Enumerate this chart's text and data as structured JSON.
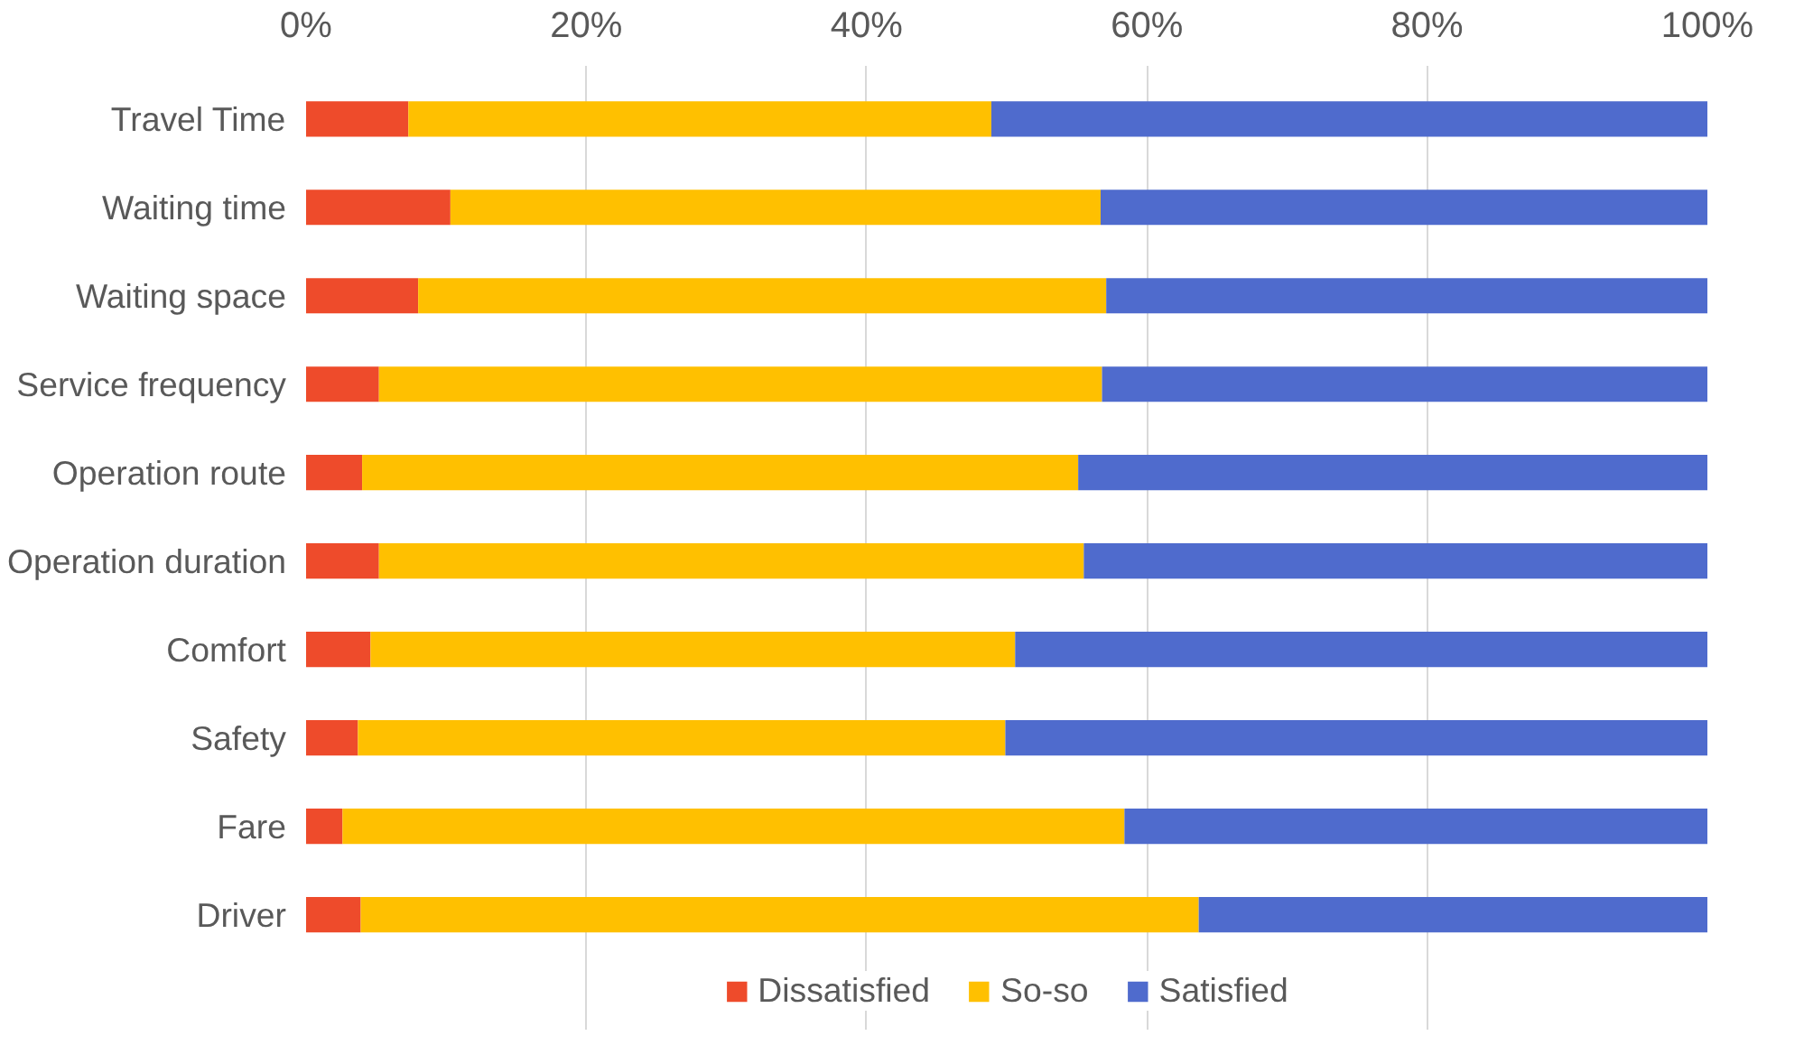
{
  "chart_data": {
    "type": "bar",
    "orientation": "horizontal",
    "stacked": true,
    "categories": [
      "Travel Time",
      "Waiting time",
      "Waiting space",
      "Service frequency",
      "Operation route",
      "Operation duration",
      "Comfort",
      "Safety",
      "Fare",
      "Driver"
    ],
    "series": [
      {
        "name": "Dissatisfied",
        "color": "#ee4b2b",
        "values": [
          7.3,
          10.3,
          8.0,
          5.2,
          4.0,
          5.2,
          4.6,
          3.7,
          2.6,
          3.9
        ]
      },
      {
        "name": "So-so",
        "color": "#ffc000",
        "values": [
          41.6,
          46.4,
          49.1,
          51.6,
          51.1,
          50.3,
          46.0,
          46.2,
          55.8,
          59.8
        ]
      },
      {
        "name": "Satisfied",
        "color": "#4f6bcd",
        "values": [
          51.1,
          43.3,
          42.9,
          43.2,
          44.9,
          44.5,
          49.4,
          50.1,
          41.6,
          36.3
        ]
      }
    ],
    "xlim": [
      0,
      100
    ],
    "xticks": [
      {
        "value": 0,
        "label": "0%"
      },
      {
        "value": 20,
        "label": "20%"
      },
      {
        "value": 40,
        "label": "40%"
      },
      {
        "value": 60,
        "label": "60%"
      },
      {
        "value": 80,
        "label": "80%"
      },
      {
        "value": 100,
        "label": "100%"
      }
    ],
    "grid": "x",
    "legend": "bottom"
  }
}
